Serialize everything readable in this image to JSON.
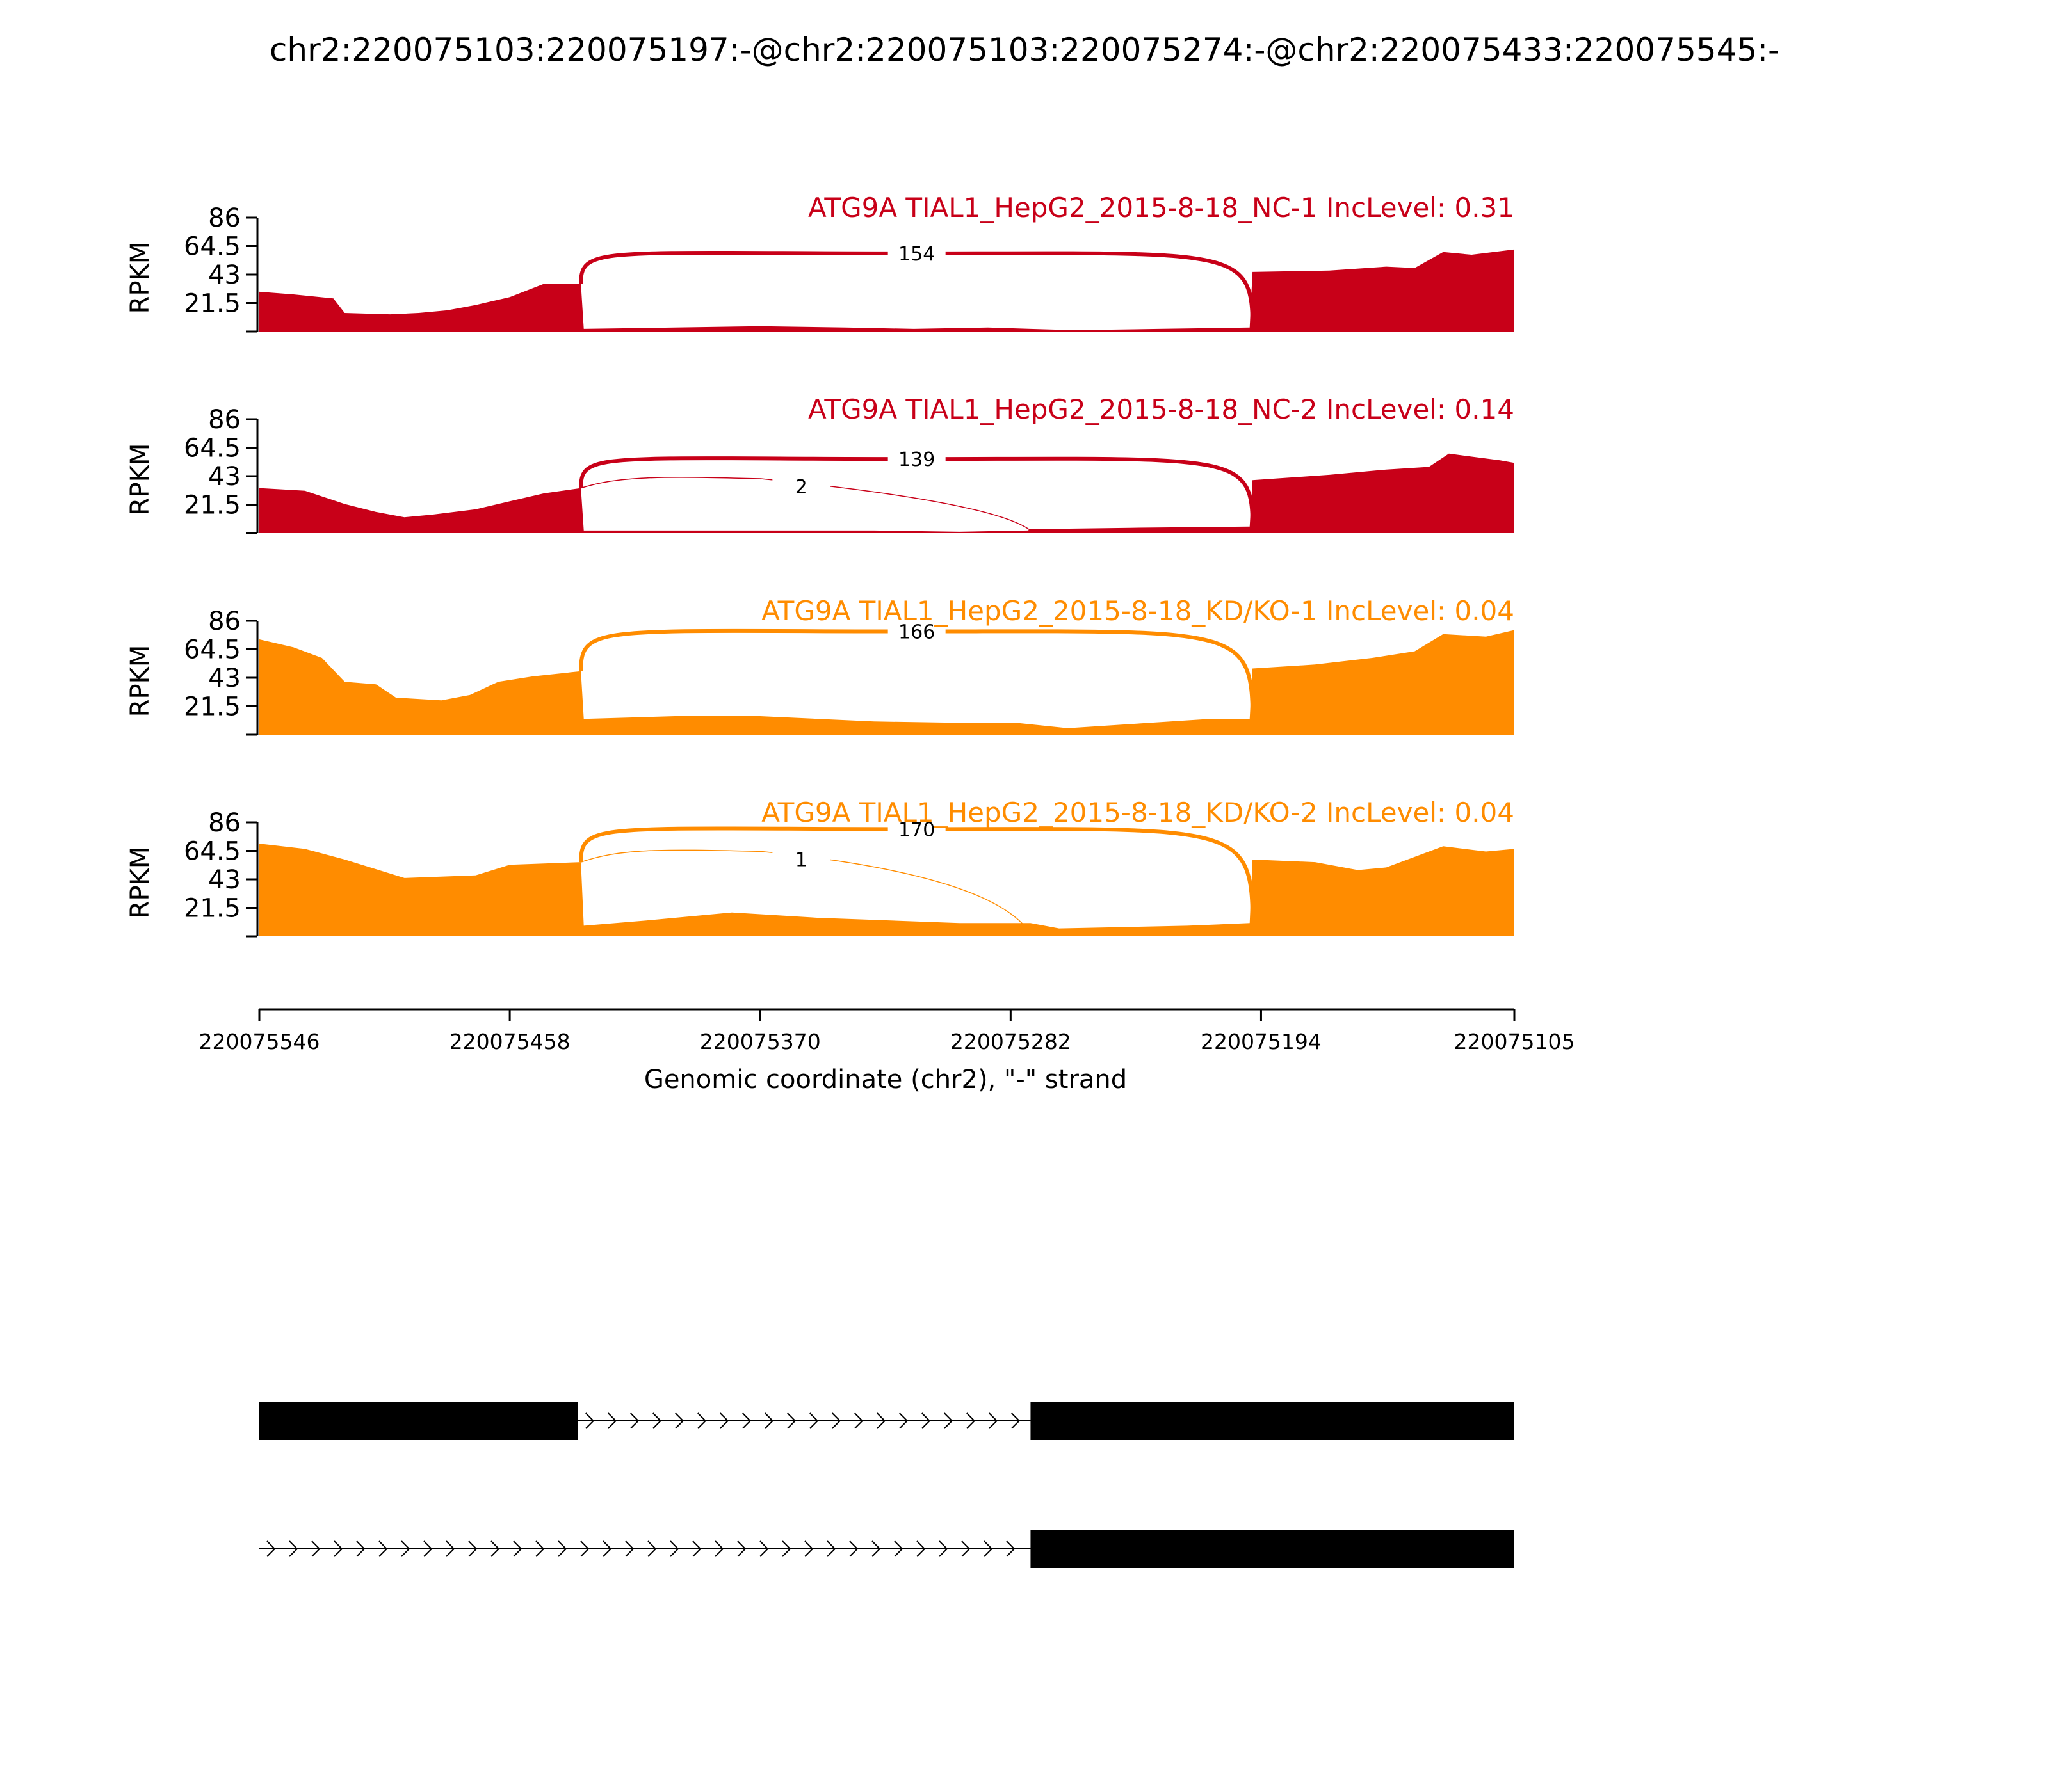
{
  "chart_data": {
    "type": "area",
    "title": "chr2:220075103:220075197:-@chr2:220075103:220075274:-@chr2:220075433:220075545:-",
    "ylabel": "RPKM",
    "xlabel": "Genomic coordinate (chr2), \"-\" strand",
    "x_range": [
      220075546,
      220075105
    ],
    "x_ticks": [
      "220075546",
      "220075458",
      "220075370",
      "220075282",
      "220075194",
      "220075105"
    ],
    "y_ticks": [
      "21.5",
      "43",
      "64.5",
      "86"
    ],
    "ylim": [
      0,
      86
    ],
    "series": [
      {
        "name": "ATG9A TIAL1_HepG2_2015-8-18_NC-1 IncLevel: 0.31",
        "color": "#c80018",
        "coverage": [
          [
            220075546,
            30
          ],
          [
            220075534,
            28
          ],
          [
            220075520,
            25
          ],
          [
            220075516,
            14
          ],
          [
            220075500,
            13
          ],
          [
            220075490,
            14
          ],
          [
            220075480,
            16
          ],
          [
            220075470,
            20
          ],
          [
            220075458,
            26
          ],
          [
            220075446,
            36
          ],
          [
            220075433,
            36
          ],
          [
            220075432,
            2
          ],
          [
            220075400,
            3
          ],
          [
            220075370,
            4
          ],
          [
            220075340,
            3
          ],
          [
            220075316,
            2
          ],
          [
            220075290,
            3
          ],
          [
            220075275,
            2
          ],
          [
            220075260,
            1
          ],
          [
            220075230,
            2
          ],
          [
            220075198,
            3
          ],
          [
            220075197,
            45
          ],
          [
            220075170,
            46
          ],
          [
            220075150,
            49
          ],
          [
            220075140,
            48
          ],
          [
            220075130,
            60
          ],
          [
            220075120,
            58
          ],
          [
            220075105,
            62
          ]
        ],
        "junctions": [
          {
            "label": "154",
            "from": 220075433,
            "to": 220075197,
            "peak": 59
          }
        ]
      },
      {
        "name": "ATG9A TIAL1_HepG2_2015-8-18_NC-2 IncLevel: 0.14",
        "color": "#c80018",
        "coverage": [
          [
            220075546,
            34
          ],
          [
            220075530,
            32
          ],
          [
            220075516,
            22
          ],
          [
            220075505,
            16
          ],
          [
            220075495,
            12
          ],
          [
            220075485,
            14
          ],
          [
            220075470,
            18
          ],
          [
            220075458,
            24
          ],
          [
            220075446,
            30
          ],
          [
            220075433,
            34
          ],
          [
            220075432,
            2
          ],
          [
            220075400,
            2
          ],
          [
            220075370,
            2
          ],
          [
            220075330,
            2
          ],
          [
            220075300,
            1
          ],
          [
            220075276,
            2
          ],
          [
            220075275,
            3
          ],
          [
            220075240,
            4
          ],
          [
            220075198,
            5
          ],
          [
            220075197,
            40
          ],
          [
            220075170,
            44
          ],
          [
            220075150,
            48
          ],
          [
            220075135,
            50
          ],
          [
            220075128,
            60
          ],
          [
            220075110,
            55
          ],
          [
            220075105,
            53
          ]
        ],
        "junctions": [
          {
            "label": "139",
            "from": 220075433,
            "to": 220075197,
            "peak": 56
          },
          {
            "label": "2",
            "from": 220075433,
            "to": 220075275,
            "peak": 43
          }
        ]
      },
      {
        "name": "ATG9A TIAL1_HepG2_2015-8-18_KD/KO-1 IncLevel: 0.04",
        "color": "#ff8c00",
        "coverage": [
          [
            220075546,
            72
          ],
          [
            220075534,
            66
          ],
          [
            220075524,
            58
          ],
          [
            220075516,
            40
          ],
          [
            220075505,
            38
          ],
          [
            220075498,
            28
          ],
          [
            220075482,
            26
          ],
          [
            220075472,
            30
          ],
          [
            220075462,
            40
          ],
          [
            220075450,
            44
          ],
          [
            220075433,
            48
          ],
          [
            220075432,
            12
          ],
          [
            220075400,
            14
          ],
          [
            220075370,
            14
          ],
          [
            220075330,
            10
          ],
          [
            220075300,
            9
          ],
          [
            220075280,
            9
          ],
          [
            220075262,
            5
          ],
          [
            220075240,
            8
          ],
          [
            220075212,
            12
          ],
          [
            220075198,
            12
          ],
          [
            220075197,
            50
          ],
          [
            220075175,
            53
          ],
          [
            220075155,
            58
          ],
          [
            220075140,
            63
          ],
          [
            220075130,
            76
          ],
          [
            220075115,
            74
          ],
          [
            220075105,
            79
          ]
        ],
        "junctions": [
          {
            "label": "166",
            "from": 220075433,
            "to": 220075197,
            "peak": 78
          }
        ]
      },
      {
        "name": "ATG9A TIAL1_HepG2_2015-8-18_KD/KO-2 IncLevel: 0.04",
        "color": "#ff8c00",
        "coverage": [
          [
            220075546,
            70
          ],
          [
            220075530,
            66
          ],
          [
            220075516,
            58
          ],
          [
            220075495,
            44
          ],
          [
            220075470,
            46
          ],
          [
            220075458,
            54
          ],
          [
            220075433,
            56
          ],
          [
            220075432,
            8
          ],
          [
            220075410,
            12
          ],
          [
            220075380,
            18
          ],
          [
            220075350,
            14
          ],
          [
            220075300,
            10
          ],
          [
            220075275,
            10
          ],
          [
            220075265,
            6
          ],
          [
            220075220,
            8
          ],
          [
            220075198,
            10
          ],
          [
            220075197,
            58
          ],
          [
            220075175,
            56
          ],
          [
            220075160,
            50
          ],
          [
            220075150,
            52
          ],
          [
            220075130,
            68
          ],
          [
            220075115,
            64
          ],
          [
            220075105,
            66
          ]
        ],
        "junctions": [
          {
            "label": "170",
            "from": 220075433,
            "to": 220075197,
            "peak": 81
          },
          {
            "label": "1",
            "from": 220075433,
            "to": 220075275,
            "peak": 66
          }
        ]
      }
    ],
    "isoforms": [
      {
        "exons": [
          [
            220075546,
            220075434
          ],
          [
            220075275,
            220075105
          ]
        ]
      },
      {
        "exons": [
          [
            220075275,
            220075105
          ]
        ]
      }
    ]
  }
}
